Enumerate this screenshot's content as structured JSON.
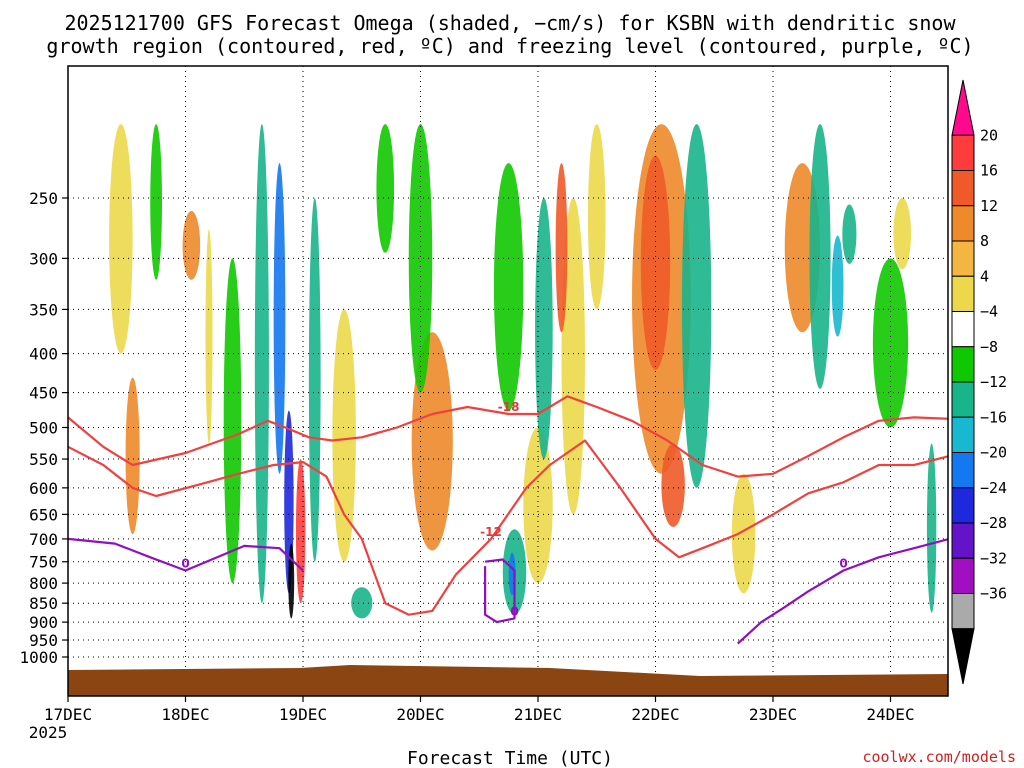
{
  "chart_data": {
    "type": "heatmap",
    "title_line1": "2025121700 GFS Forecast Omega (shaded, −cm/s) for KSBN with dendritic snow",
    "title_line2": "growth region (contoured, red, ºC) and freezing level (contoured, purple, ºC)",
    "xlabel": "Forecast Time (UTC)",
    "ylabel": "",
    "credit": "coolwx.com/models",
    "x_ticks": [
      "17DEC",
      "18DEC",
      "19DEC",
      "20DEC",
      "21DEC",
      "22DEC",
      "23DEC",
      "24DEC"
    ],
    "x_tick_year": "2025",
    "y_ticks": [
      "250",
      "300",
      "350",
      "400",
      "450",
      "500",
      "550",
      "600",
      "650",
      "700",
      "750",
      "800",
      "850",
      "900",
      "950",
      "1000"
    ],
    "y_tick_values": [
      250,
      300,
      350,
      400,
      450,
      500,
      550,
      600,
      650,
      700,
      750,
      800,
      850,
      900,
      950,
      1000
    ],
    "colorbar_labels": [
      "20",
      "16",
      "12",
      "8",
      "4",
      "−4",
      "−8",
      "−12",
      "−16",
      "−20",
      "−24",
      "−28",
      "−32",
      "−36"
    ],
    "colorbar_colors": [
      "#ff0a8c",
      "#ff3c3c",
      "#f05a28",
      "#ee8a2a",
      "#f4b640",
      "#ecd84a",
      "#ffffff",
      "#10c800",
      "#18b48a",
      "#18b8d0",
      "#1478f0",
      "#1e28dc",
      "#6414c8",
      "#a010c0",
      "#aaaaaa",
      "#000000"
    ],
    "contour_sets": [
      {
        "name": "dgz_top",
        "color": "#f04040",
        "label": "-18",
        "days": [
          0,
          0.3,
          0.55,
          1.0,
          1.45,
          1.7,
          1.85,
          2.05,
          2.25,
          2.5,
          2.8,
          3.1,
          3.4,
          3.75,
          4.0,
          4.25,
          4.5,
          4.8,
          5.1,
          5.4,
          5.7,
          6.0,
          6.3,
          6.6,
          6.9,
          7.2,
          7.5
        ],
        "pressure": [
          485,
          530,
          560,
          540,
          510,
          490,
          500,
          515,
          520,
          515,
          500,
          480,
          470,
          480,
          480,
          455,
          470,
          490,
          520,
          560,
          580,
          575,
          545,
          515,
          490,
          485,
          487
        ]
      },
      {
        "name": "dgz_bottom",
        "color": "#f04040",
        "label": "-12",
        "days": [
          0,
          0.3,
          0.55,
          0.75,
          1.1,
          1.45,
          1.75,
          2.0,
          2.2,
          2.35,
          2.5,
          2.7,
          2.9,
          3.1,
          3.3,
          3.6,
          3.9,
          4.1,
          4.4,
          4.7,
          5.0,
          5.2,
          5.4,
          5.7,
          6.0,
          6.3,
          6.6,
          6.9,
          7.2,
          7.5
        ],
        "pressure": [
          530,
          560,
          600,
          615,
          595,
          575,
          560,
          555,
          580,
          650,
          700,
          850,
          880,
          870,
          780,
          700,
          600,
          560,
          520,
          600,
          700,
          740,
          720,
          690,
          650,
          610,
          590,
          560,
          560,
          545
        ]
      },
      {
        "name": "freezing_level",
        "color": "#9010c0",
        "label": "0",
        "days": [
          0,
          0.4,
          0.7,
          1.0,
          1.5,
          1.8,
          2.0
        ],
        "pressure": [
          700,
          710,
          740,
          770,
          715,
          720,
          770
        ]
      },
      {
        "name": "freezing_level_2",
        "color": "#9010c0",
        "label": "0",
        "days": [
          3.55,
          3.7,
          3.8,
          3.8,
          3.65,
          3.55,
          3.55
        ],
        "pressure": [
          750,
          745,
          770,
          890,
          900,
          880,
          760
        ]
      },
      {
        "name": "freezing_level_3",
        "color": "#9010c0",
        "label": "0",
        "days": [
          5.7,
          5.9,
          6.1,
          6.3,
          6.6,
          6.9,
          7.2,
          7.5
        ],
        "pressure": [
          960,
          900,
          860,
          820,
          770,
          740,
          720,
          700
        ]
      }
    ],
    "omega_cells": [
      {
        "day": 0.55,
        "p": 560,
        "w": 0.12,
        "h": 260,
        "v": 8
      },
      {
        "day": 0.45,
        "p": 300,
        "w": 0.2,
        "h": 200,
        "v": 4
      },
      {
        "day": 1.05,
        "p": 290,
        "w": 0.15,
        "h": 60,
        "v": 8
      },
      {
        "day": 1.4,
        "p": 550,
        "w": 0.15,
        "h": 500,
        "v": -4
      },
      {
        "day": 1.65,
        "p": 500,
        "w": 0.12,
        "h": 700,
        "v": -8
      },
      {
        "day": 1.8,
        "p": 400,
        "w": 0.1,
        "h": 350,
        "v": -16
      },
      {
        "day": 1.88,
        "p": 650,
        "w": 0.08,
        "h": 350,
        "v": -20
      },
      {
        "day": 1.9,
        "p": 800,
        "w": 0.05,
        "h": 180,
        "v": -36
      },
      {
        "day": 1.98,
        "p": 700,
        "w": 0.08,
        "h": 300,
        "v": 16
      },
      {
        "day": 2.1,
        "p": 500,
        "w": 0.1,
        "h": 500,
        "v": -8
      },
      {
        "day": 2.5,
        "p": 850,
        "w": 0.18,
        "h": 80,
        "v": -8
      },
      {
        "day": 2.35,
        "p": 550,
        "w": 0.2,
        "h": 400,
        "v": 4
      },
      {
        "day": 3.1,
        "p": 550,
        "w": 0.35,
        "h": 350,
        "v": 8
      },
      {
        "day": 3.0,
        "p": 300,
        "w": 0.2,
        "h": 300,
        "v": -4
      },
      {
        "day": 3.8,
        "p": 780,
        "w": 0.2,
        "h": 200,
        "v": -8
      },
      {
        "day": 3.78,
        "p": 780,
        "w": 0.06,
        "h": 100,
        "v": -16
      },
      {
        "day": 3.75,
        "p": 350,
        "w": 0.25,
        "h": 250,
        "v": -4
      },
      {
        "day": 4.0,
        "p": 650,
        "w": 0.25,
        "h": 300,
        "v": 4
      },
      {
        "day": 4.3,
        "p": 450,
        "w": 0.2,
        "h": 400,
        "v": 4
      },
      {
        "day": 4.05,
        "p": 400,
        "w": 0.15,
        "h": 300,
        "v": -8
      },
      {
        "day": 4.2,
        "p": 300,
        "w": 0.1,
        "h": 150,
        "v": 12
      },
      {
        "day": 4.5,
        "p": 250,
        "w": 0.15,
        "h": 200,
        "v": 4
      },
      {
        "day": 5.05,
        "p": 350,
        "w": 0.5,
        "h": 450,
        "v": 8
      },
      {
        "day": 5.0,
        "p": 320,
        "w": 0.25,
        "h": 200,
        "v": 12
      },
      {
        "day": 5.15,
        "p": 600,
        "w": 0.2,
        "h": 150,
        "v": 12
      },
      {
        "day": 5.35,
        "p": 400,
        "w": 0.25,
        "h": 400,
        "v": -8
      },
      {
        "day": 5.75,
        "p": 700,
        "w": 0.2,
        "h": 250,
        "v": 4
      },
      {
        "day": 6.25,
        "p": 300,
        "w": 0.3,
        "h": 150,
        "v": 8
      },
      {
        "day": 6.4,
        "p": 320,
        "w": 0.18,
        "h": 250,
        "v": -8
      },
      {
        "day": 6.55,
        "p": 330,
        "w": 0.1,
        "h": 100,
        "v": -12
      },
      {
        "day": 6.65,
        "p": 280,
        "w": 0.12,
        "h": 50,
        "v": -8
      },
      {
        "day": 7.0,
        "p": 400,
        "w": 0.3,
        "h": 200,
        "v": -4
      },
      {
        "day": 7.35,
        "p": 700,
        "w": 0.08,
        "h": 350,
        "v": -8
      },
      {
        "day": 7.1,
        "p": 280,
        "w": 0.15,
        "h": 60,
        "v": 4
      },
      {
        "day": 0.75,
        "p": 260,
        "w": 0.1,
        "h": 120,
        "v": -4
      },
      {
        "day": 2.7,
        "p": 220,
        "w": 0.15,
        "h": 150,
        "v": -4
      },
      {
        "day": 1.2,
        "p": 400,
        "w": 0.06,
        "h": 250,
        "v": 4
      }
    ]
  }
}
